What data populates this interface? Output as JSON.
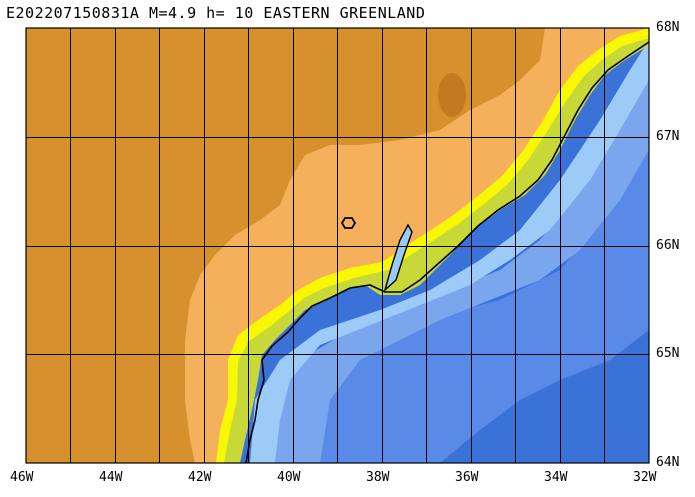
{
  "title": "E202207150831A M=4.9 h= 10 EASTERN GREENLAND",
  "map": {
    "lon_labels": [
      "46W",
      "44W",
      "42W",
      "40W",
      "38W",
      "36W",
      "34W",
      "32W"
    ],
    "lat_labels": [
      "68N",
      "67N",
      "66N",
      "65N",
      "64N"
    ],
    "epicenter": {
      "lon": -38.8,
      "lat": 66.25,
      "marker": "hexagon-outline"
    },
    "colors": {
      "ice_high": "#d6902e",
      "ice_low": "#f4b05a",
      "lowland": "#c8d838",
      "coast": "#f8f800",
      "shelf": "#9ccbf8",
      "sea": "#7aa6ee",
      "deep": "#5a8ae8",
      "deepest": "#3a72d8"
    }
  }
}
